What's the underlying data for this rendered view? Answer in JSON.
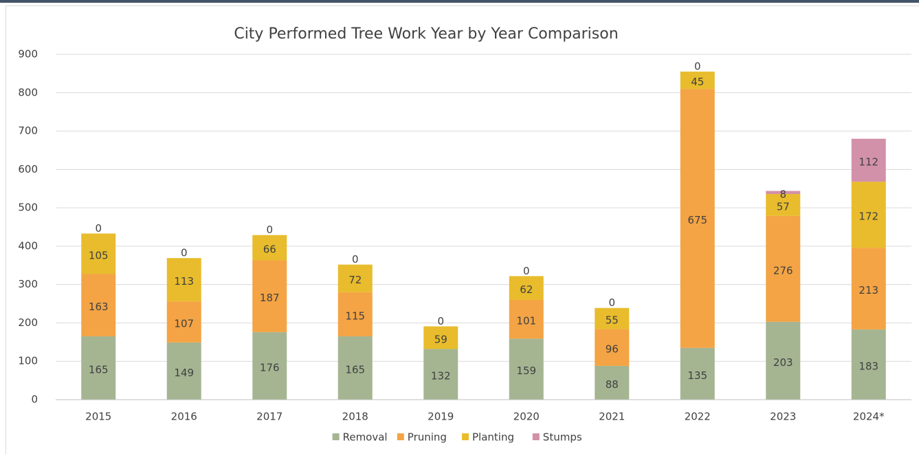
{
  "chart_data": {
    "type": "stacked_bar",
    "title": "City Performed Tree Work Year by Year Comparison",
    "categories": [
      "2015",
      "2016",
      "2017",
      "2018",
      "2019",
      "2020",
      "2021",
      "2022",
      "2023",
      "2024*"
    ],
    "series": [
      {
        "name": "Removal",
        "color": "#a5b592",
        "values": [
          165,
          149,
          176,
          165,
          132,
          159,
          88,
          135,
          203,
          183
        ]
      },
      {
        "name": "Pruning",
        "color": "#f4a444",
        "values": [
          163,
          107,
          187,
          115,
          0,
          101,
          96,
          675,
          276,
          213
        ]
      },
      {
        "name": "Planting",
        "color": "#e8bc2c",
        "values": [
          105,
          113,
          66,
          72,
          59,
          62,
          55,
          45,
          57,
          172
        ]
      },
      {
        "name": "Stumps",
        "color": "#d291a8",
        "values": [
          0,
          0,
          0,
          0,
          0,
          0,
          0,
          0,
          8,
          112
        ]
      }
    ],
    "ylim": [
      0,
      900
    ],
    "yticks": [
      0,
      100,
      200,
      300,
      400,
      500,
      600,
      700,
      800,
      900
    ],
    "grid": true,
    "legend": "bottom"
  }
}
